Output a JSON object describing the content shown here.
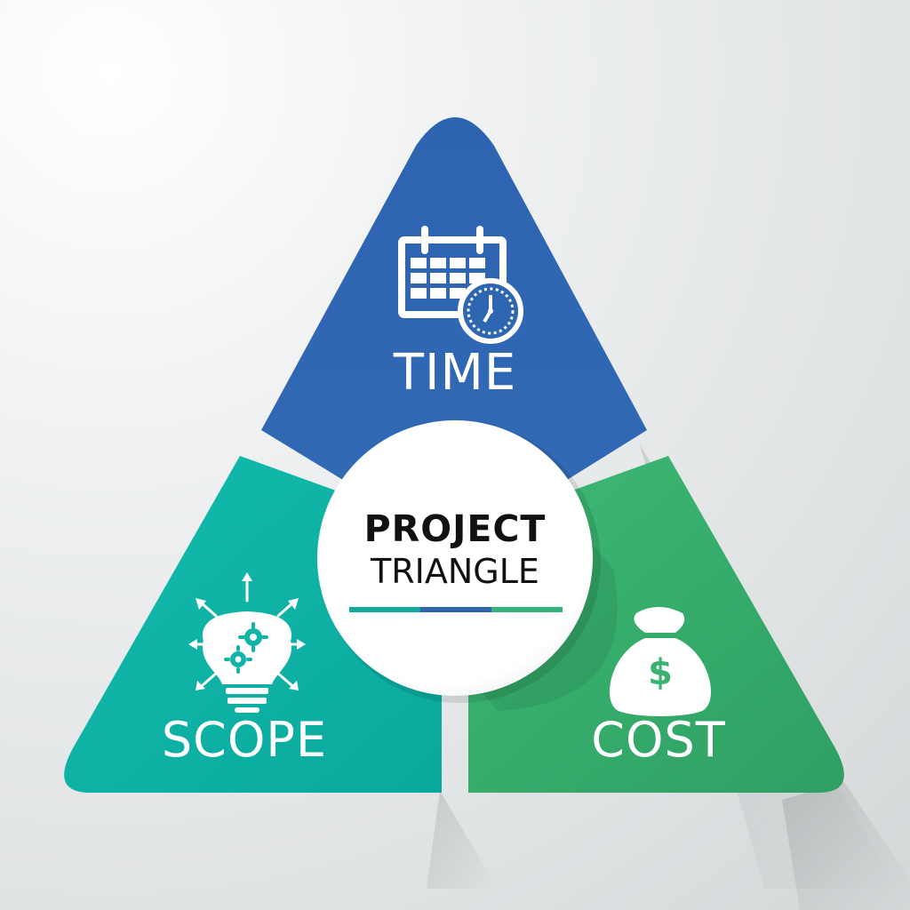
{
  "diagram": {
    "center": {
      "title_line1": "PROJECT",
      "title_line2": "TRIANGLE",
      "underline_colors": [
        "#14a89d",
        "#2e64b2",
        "#36b37a"
      ]
    },
    "panels": [
      {
        "key": "time",
        "label": "TIME",
        "icon": "calendar-clock-icon",
        "color": "#2f66b2"
      },
      {
        "key": "scope",
        "label": "SCOPE",
        "icon": "lightbulb-gears-icon",
        "color": "#0fb5a8"
      },
      {
        "key": "cost",
        "label": "COST",
        "icon": "money-bag-icon",
        "color": "#3ab370"
      }
    ]
  }
}
